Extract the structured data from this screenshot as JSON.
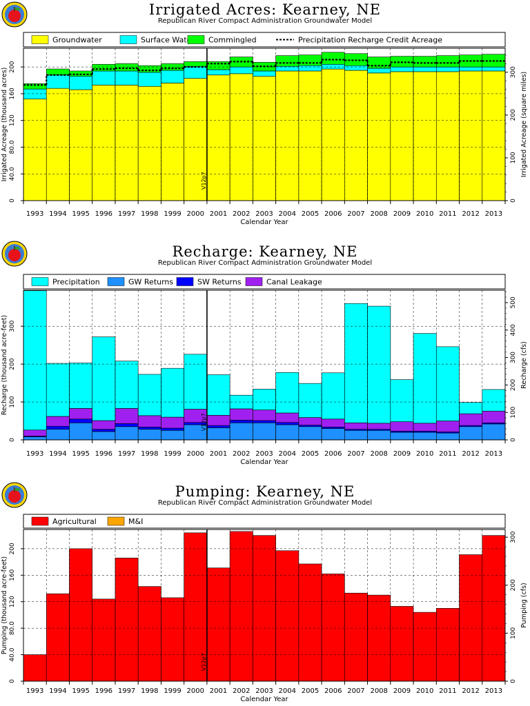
{
  "chart_data": [
    {
      "type": "bar",
      "stacked": true,
      "title": "Irrigated  Acres:  Kearney,  NE",
      "subtitle": "Republican River Compact Administration Groundwater Model",
      "xlabel": "Calendar Year",
      "ylabel": "Irrigated Acreage (thousand acres)",
      "ylabel_right": "Irrigated Acreage (square miles)",
      "categories": [
        "1993",
        "1994",
        "1995",
        "1996",
        "1997",
        "1998",
        "1999",
        "2000",
        "2001",
        "2002",
        "2003",
        "2004",
        "2005",
        "2006",
        "2007",
        "2008",
        "2009",
        "2010",
        "2011",
        "2012",
        "2013"
      ],
      "ylim": [
        0,
        228
      ],
      "yticks": [
        "0",
        "40.0",
        "80.0",
        "120",
        "160",
        "200"
      ],
      "ylim_right": [
        0,
        356
      ],
      "yticks_right": [
        "0",
        "100",
        "200",
        "300"
      ],
      "grid": true,
      "legend_position": "top",
      "series": [
        {
          "name": "Groundwater",
          "color": "#ffff00",
          "values": [
            152,
            168,
            166,
            173,
            173,
            171,
            176,
            183,
            188,
            190,
            186,
            194,
            194,
            197,
            195,
            191,
            193,
            193,
            193,
            194,
            194
          ]
        },
        {
          "name": "Surface Water",
          "color": "#00ffff",
          "values": [
            15,
            20,
            20,
            21,
            21,
            21,
            19,
            18,
            8,
            10,
            8,
            7,
            8,
            7,
            7,
            7,
            7,
            7,
            7,
            6,
            6
          ]
        },
        {
          "name": "Commingled",
          "color": "#00ff00",
          "values": [
            8,
            9,
            8,
            10,
            11,
            10,
            10,
            7,
            12,
            15,
            13,
            16,
            16,
            18,
            18,
            17,
            16,
            16,
            17,
            18,
            19
          ]
        }
      ],
      "line_series": {
        "name": "Precipitation Recharge Credit Acreage",
        "values": [
          173,
          188,
          189,
          197,
          198,
          195,
          198,
          200,
          205,
          208,
          201,
          206,
          206,
          211,
          210,
          202,
          207,
          206,
          206,
          209,
          209
        ]
      },
      "marker": {
        "label": "V12p7",
        "after": "2000"
      }
    },
    {
      "type": "bar",
      "stacked": true,
      "title": "Recharge:  Kearney,  NE",
      "subtitle": "Republican River Compact Administration Groundwater Model",
      "xlabel": "Calendar Year",
      "ylabel": "Recharge (thousand acre-feet)",
      "ylabel_right": "Recharge (cfs)",
      "categories": [
        "1993",
        "1994",
        "1995",
        "1996",
        "1997",
        "1998",
        "1999",
        "2000",
        "2001",
        "2002",
        "2003",
        "2004",
        "2005",
        "2006",
        "2007",
        "2008",
        "2009",
        "2010",
        "2011",
        "2012",
        "2013"
      ],
      "ylim": [
        0,
        395
      ],
      "yticks": [
        "0",
        "100",
        "200",
        "300"
      ],
      "ylim_right": [
        0,
        545
      ],
      "yticks_right": [
        "0",
        "100",
        "200",
        "300",
        "400",
        "500"
      ],
      "grid": true,
      "legend_position": "top",
      "series": [
        {
          "name": "GW Returns",
          "color": "#1e90ff",
          "values": [
            8,
            28,
            45,
            22,
            35,
            28,
            25,
            40,
            32,
            45,
            45,
            40,
            35,
            30,
            25,
            25,
            20,
            20,
            18,
            35,
            42
          ]
        },
        {
          "name": "SW Returns",
          "color": "#0000ff",
          "values": [
            2,
            8,
            10,
            6,
            8,
            6,
            6,
            6,
            6,
            7,
            6,
            6,
            4,
            4,
            3,
            3,
            3,
            3,
            3,
            3,
            3
          ]
        },
        {
          "name": "Canal Leakage",
          "color": "#a020f0",
          "values": [
            16,
            26,
            28,
            23,
            40,
            30,
            29,
            35,
            27,
            30,
            28,
            25,
            20,
            21,
            17,
            16,
            25,
            21,
            29,
            31,
            31
          ]
        },
        {
          "name": "Precipitation",
          "color": "#00ffff",
          "values": [
            368,
            140,
            120,
            221,
            125,
            109,
            129,
            145,
            107,
            36,
            55,
            107,
            90,
            122,
            315,
            309,
            111,
            237,
            196,
            30,
            57
          ]
        }
      ],
      "marker": {
        "label": "V12p7",
        "after": "2000"
      }
    },
    {
      "type": "bar",
      "stacked": true,
      "title": "Pumping:  Kearney,  NE",
      "subtitle": "Republican River Compact Administration Groundwater Model",
      "xlabel": "Calendar Year",
      "ylabel": "Pumping (thousand acre-feet)",
      "ylabel_right": "Pumping (cfs)",
      "categories": [
        "1993",
        "1994",
        "1995",
        "1996",
        "1997",
        "1998",
        "1999",
        "2000",
        "2001",
        "2002",
        "2003",
        "2004",
        "2005",
        "2006",
        "2007",
        "2008",
        "2009",
        "2010",
        "2011",
        "2012",
        "2013"
      ],
      "ylim": [
        0,
        229
      ],
      "yticks": [
        "0",
        "40.0",
        "80.0",
        "120",
        "160",
        "200"
      ],
      "ylim_right": [
        0,
        316
      ],
      "yticks_right": [
        "0",
        "100",
        "200",
        "300"
      ],
      "grid": true,
      "legend_position": "top",
      "series": [
        {
          "name": "Agricultural",
          "color": "#ff0000",
          "values": [
            40,
            132,
            200,
            124,
            186,
            143,
            126,
            224,
            171,
            226,
            220,
            197,
            177,
            162,
            133,
            130,
            113,
            104,
            110,
            191,
            220
          ]
        },
        {
          "name": "M&I",
          "color": "#ffa500",
          "values": [
            0,
            0,
            0,
            0,
            0,
            0,
            0,
            0,
            0,
            0,
            0,
            0,
            0,
            0,
            0,
            0,
            0,
            0,
            0,
            0,
            0
          ]
        }
      ],
      "marker": {
        "label": "V12p7",
        "after": "2000"
      }
    }
  ]
}
